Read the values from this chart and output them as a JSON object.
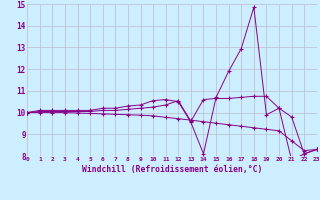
{
  "xlabel": "Windchill (Refroidissement éolien,°C)",
  "xlim": [
    0,
    23
  ],
  "ylim": [
    8,
    15
  ],
  "yticks": [
    8,
    9,
    10,
    11,
    12,
    13,
    14,
    15
  ],
  "xticks": [
    0,
    1,
    2,
    3,
    4,
    5,
    6,
    7,
    8,
    9,
    10,
    11,
    12,
    13,
    14,
    15,
    16,
    17,
    18,
    19,
    20,
    21,
    22,
    23
  ],
  "bg_color": "#cceeff",
  "grid_color": "#bbbbcc",
  "line_color": "#880088",
  "line1": [
    10.0,
    10.1,
    10.1,
    10.1,
    10.1,
    10.1,
    10.2,
    10.2,
    10.3,
    10.35,
    10.55,
    10.6,
    10.5,
    9.55,
    8.1,
    10.7,
    11.9,
    12.95,
    14.85,
    9.9,
    10.2,
    7.8,
    8.1,
    8.3
  ],
  "line2": [
    10.0,
    10.05,
    10.05,
    10.05,
    10.05,
    10.05,
    10.1,
    10.1,
    10.15,
    10.2,
    10.25,
    10.35,
    10.55,
    9.6,
    10.6,
    10.65,
    10.65,
    10.7,
    10.75,
    10.75,
    10.2,
    9.8,
    8.1,
    8.3
  ],
  "line3": [
    10.0,
    10.0,
    10.0,
    10.0,
    9.98,
    9.96,
    9.94,
    9.92,
    9.9,
    9.88,
    9.85,
    9.78,
    9.72,
    9.65,
    9.58,
    9.51,
    9.44,
    9.37,
    9.3,
    9.23,
    9.16,
    8.7,
    8.25,
    8.3
  ]
}
